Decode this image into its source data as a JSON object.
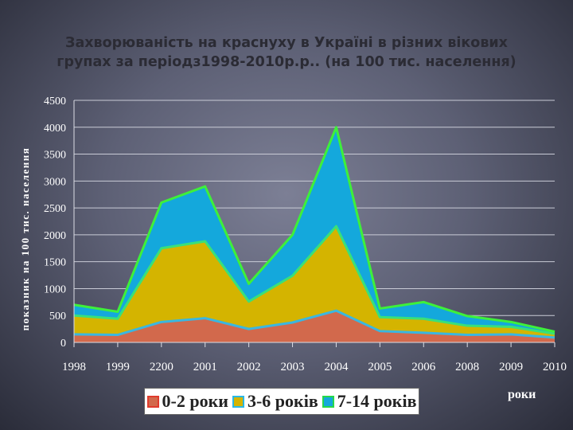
{
  "chart_data": {
    "type": "area",
    "stacked": true,
    "title_line1": "Захворюваність на краснуху в Україні в різних вікових",
    "title_line2": "групах за періодз1998-2010р.р.. (на 100 тис. населення)",
    "ylabel": "показник на 100 тис. населення",
    "xlabel": "роки",
    "categories": [
      "1998",
      "1999",
      "2200",
      "2001",
      "2002",
      "2003",
      "2004",
      "2005",
      "2006",
      "2008",
      "2009",
      "2010"
    ],
    "ylim": [
      0,
      4500
    ],
    "yticks": [
      0,
      500,
      1000,
      1500,
      2000,
      2500,
      3000,
      3500,
      4000,
      4500
    ],
    "grid": true,
    "legend_position": "bottom",
    "series": [
      {
        "name": "0-2 роки",
        "color": "#d2694c",
        "line_color": "#3ab7e0",
        "values": [
          150,
          140,
          380,
          450,
          250,
          370,
          590,
          210,
          180,
          140,
          150,
          90
        ]
      },
      {
        "name": "3-6 років",
        "color": "#d4b400",
        "line_color": "#39e07a",
        "values": [
          350,
          300,
          1370,
          1430,
          510,
          870,
          1570,
          260,
          260,
          170,
          140,
          70
        ]
      },
      {
        "name": "7-14 років",
        "color": "#14a8dc",
        "line_color": "#3ef03a",
        "values": [
          200,
          130,
          850,
          1020,
          330,
          760,
          1840,
          160,
          310,
          180,
          90,
          40
        ]
      }
    ]
  }
}
